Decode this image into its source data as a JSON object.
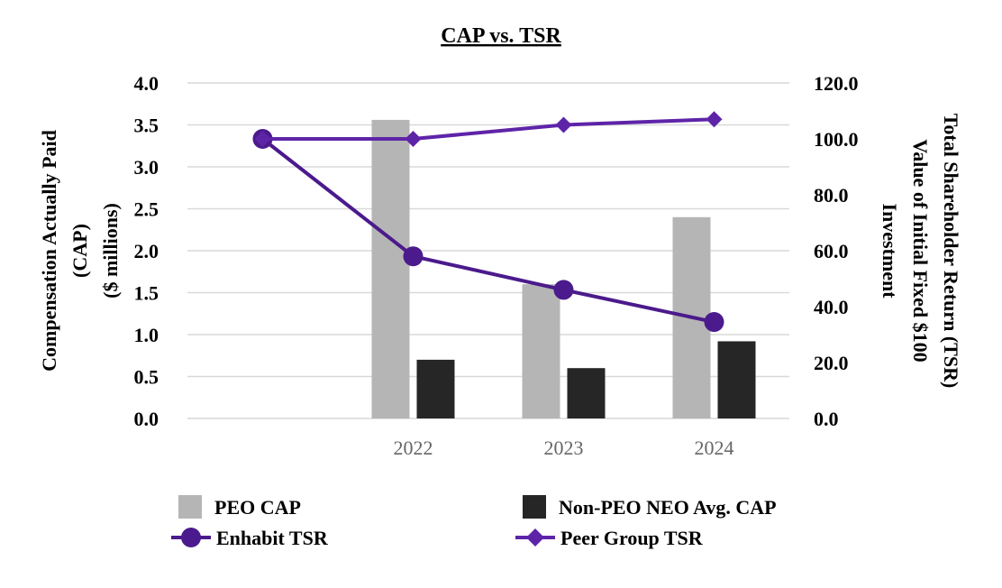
{
  "chart_data": {
    "type": "bar+line",
    "title": "CAP vs. TSR",
    "categories": [
      "",
      "2022",
      "2023",
      "2024"
    ],
    "left_axis": {
      "label_lines": [
        "Compensation Actually Paid",
        "(CAP)",
        "($ millions)"
      ],
      "ylim": [
        0,
        4.0
      ],
      "ticks": [
        "0.0",
        "0.5",
        "1.0",
        "1.5",
        "2.0",
        "2.5",
        "3.0",
        "3.5",
        "4.0"
      ]
    },
    "right_axis": {
      "label_lines": [
        "Total Shareholder Return (TSR)",
        "Value of Initial Fixed $100",
        "Investment"
      ],
      "ylim": [
        0,
        120.0
      ],
      "ticks": [
        "0.0",
        "20.0",
        "40.0",
        "60.0",
        "80.0",
        "100.0",
        "120.0"
      ]
    },
    "bar_series": [
      {
        "name": "PEO CAP",
        "color": "#b5b5b5",
        "values": [
          null,
          3.56,
          1.6,
          2.4
        ]
      },
      {
        "name": "Non-PEO NEO Avg. CAP",
        "color": "#262626",
        "values": [
          null,
          0.7,
          0.6,
          0.92
        ]
      }
    ],
    "line_series": [
      {
        "name": "Enhabit TSR",
        "color": "#4b1a8c",
        "marker": "circle",
        "values": [
          100.0,
          58.0,
          46.0,
          34.5
        ]
      },
      {
        "name": "Peer Group TSR",
        "color": "#5e24a8",
        "marker": "diamond",
        "values": [
          100.0,
          100.0,
          105.0,
          107.0
        ]
      }
    ],
    "legend_position": "bottom",
    "grid": true
  }
}
